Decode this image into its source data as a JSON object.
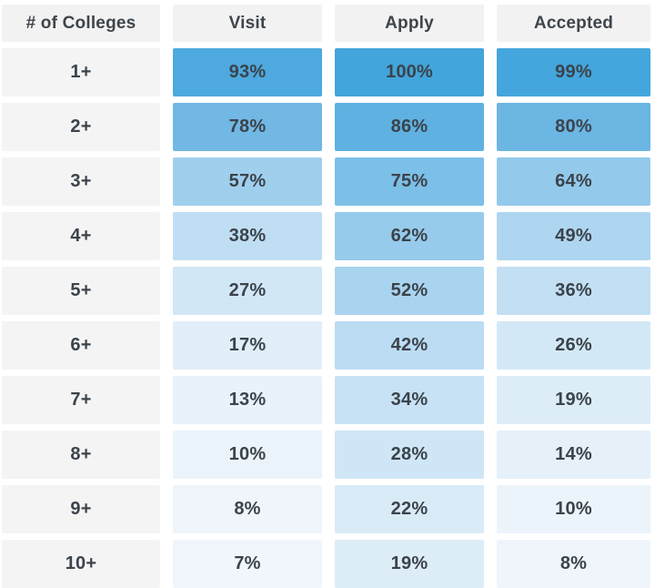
{
  "table": {
    "corner_header": "# of Colleges",
    "column_headers": [
      "Visit",
      "Apply",
      "Accepted"
    ]
  },
  "chart_data": {
    "type": "heatmap",
    "title": "",
    "xlabel": "",
    "ylabel": "",
    "categories": [
      "1+",
      "2+",
      "3+",
      "4+",
      "5+",
      "6+",
      "7+",
      "8+",
      "9+",
      "10+"
    ],
    "row_header_label": "# of Colleges",
    "series": [
      {
        "name": "Visit",
        "values": [
          93,
          78,
          57,
          38,
          27,
          17,
          13,
          10,
          8,
          7
        ],
        "labels": [
          "93%",
          "78%",
          "57%",
          "38%",
          "27%",
          "17%",
          "13%",
          "10%",
          "8%",
          "7%"
        ],
        "colors": [
          "#4da9de",
          "#71b8e4",
          "#a0cfee",
          "#c0def3",
          "#d2e7f6",
          "#e1eef9",
          "#e7f2fa",
          "#ecf4fb",
          "#eff5fb",
          "#f0f6fb"
        ]
      },
      {
        "name": "Apply",
        "values": [
          100,
          86,
          75,
          62,
          52,
          42,
          34,
          28,
          22,
          19
        ],
        "labels": [
          "100%",
          "86%",
          "75%",
          "62%",
          "52%",
          "42%",
          "34%",
          "28%",
          "22%",
          "19%"
        ],
        "colors": [
          "#42a5dc",
          "#5fb1e1",
          "#7cbfe7",
          "#96cbec",
          "#a9d4ef",
          "#bbdcf2",
          "#c7e2f4",
          "#cfe6f6",
          "#d9ebf7",
          "#ddedf8"
        ]
      },
      {
        "name": "Accepted",
        "values": [
          99,
          80,
          64,
          49,
          36,
          26,
          19,
          14,
          10,
          8
        ],
        "labels": [
          "99%",
          "80%",
          "64%",
          "49%",
          "36%",
          "26%",
          "19%",
          "14%",
          "10%",
          "8%"
        ],
        "colors": [
          "#44a6dd",
          "#6cb6e3",
          "#93c9eb",
          "#aed6f0",
          "#c3dff3",
          "#d3e8f6",
          "#ddedf8",
          "#e5f0f9",
          "#ecf4fb",
          "#eff5fb"
        ]
      }
    ],
    "value_format": "percent",
    "color_scale": {
      "min_value": 0,
      "max_value": 100,
      "min_color": "#f7fafd",
      "max_color": "#42a5dc"
    },
    "legend_position": "none",
    "grid": false
  },
  "colors": {
    "header_bg": "#f2f2f3",
    "row_label_bg": "#f4f4f5",
    "text": "#3b434b",
    "page_bg": "#ffffff"
  }
}
